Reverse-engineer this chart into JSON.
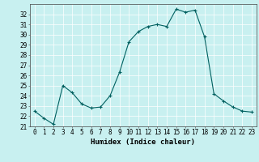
{
  "x": [
    0,
    1,
    2,
    3,
    4,
    5,
    6,
    7,
    8,
    9,
    10,
    11,
    12,
    13,
    14,
    15,
    16,
    17,
    18,
    19,
    20,
    21,
    22,
    23
  ],
  "y": [
    22.5,
    21.8,
    21.2,
    25.0,
    24.3,
    23.2,
    22.8,
    22.9,
    24.0,
    26.3,
    29.3,
    30.3,
    30.8,
    31.0,
    30.8,
    32.5,
    32.2,
    32.4,
    29.8,
    24.2,
    23.5,
    22.9,
    22.5,
    22.4
  ],
  "line_color": "#006060",
  "marker": "+",
  "marker_color": "#006060",
  "bg_color": "#c8f0f0",
  "grid_color": "#ffffff",
  "xlabel": "Humidex (Indice chaleur)",
  "xlim": [
    -0.5,
    23.5
  ],
  "ylim": [
    21,
    33
  ],
  "yticks": [
    21,
    22,
    23,
    24,
    25,
    26,
    27,
    28,
    29,
    30,
    31,
    32
  ],
  "xticks": [
    0,
    1,
    2,
    3,
    4,
    5,
    6,
    7,
    8,
    9,
    10,
    11,
    12,
    13,
    14,
    15,
    16,
    17,
    18,
    19,
    20,
    21,
    22,
    23
  ],
  "xlabel_fontsize": 6.5,
  "tick_fontsize": 5.5
}
